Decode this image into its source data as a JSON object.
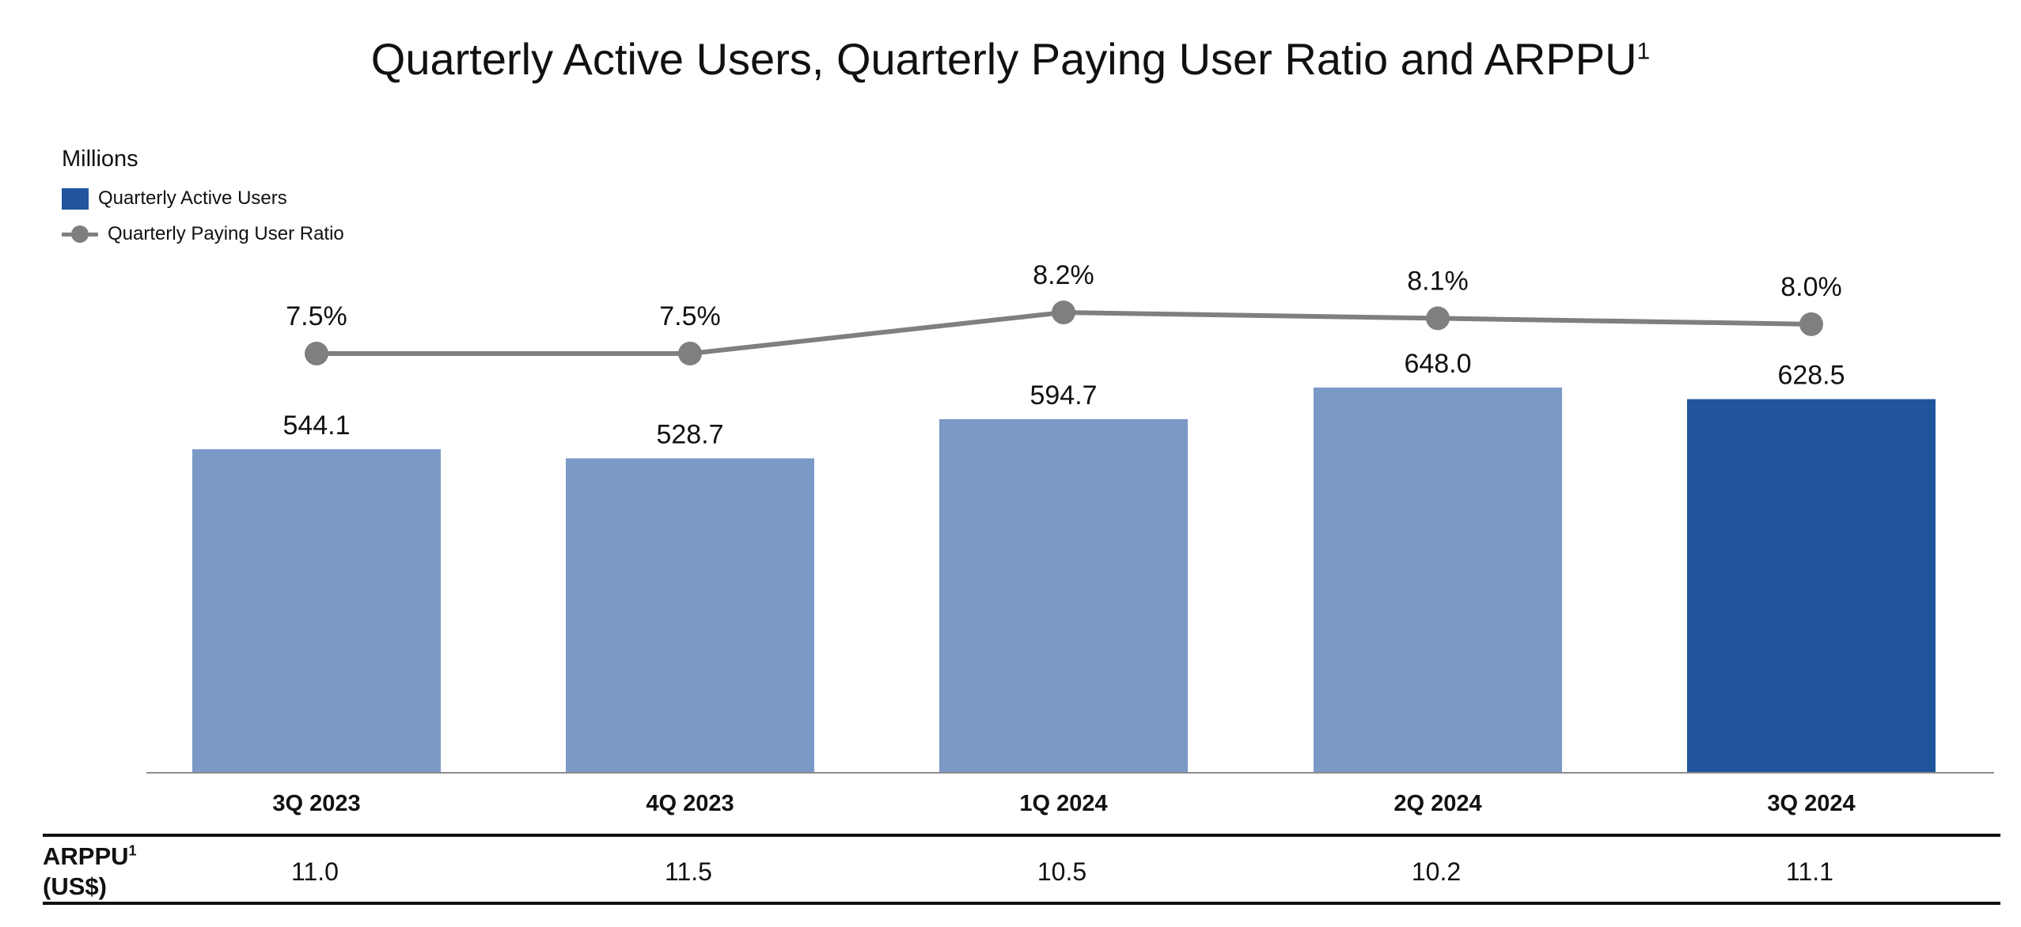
{
  "chart_data": {
    "type": "bar",
    "title": "Quarterly Active Users, Quarterly Paying User Ratio and ARPPU",
    "title_footnote": "1",
    "units_label": "Millions",
    "categories": [
      "3Q 2023",
      "4Q 2023",
      "1Q 2024",
      "2Q 2024",
      "3Q 2024"
    ],
    "series": [
      {
        "name": "Quarterly Active Users",
        "type": "bar",
        "values": [
          544.1,
          528.7,
          594.7,
          648.0,
          628.5
        ],
        "labels": [
          "544.1",
          "528.7",
          "594.7",
          "648.0",
          "628.5"
        ],
        "color": "#7b99c6",
        "highlight_color": "#20559e",
        "highlight_index": 4
      },
      {
        "name": "Quarterly Paying User Ratio",
        "type": "line",
        "values": [
          7.5,
          7.5,
          8.2,
          8.1,
          8.0
        ],
        "labels": [
          "7.5%",
          "7.5%",
          "8.2%",
          "8.1%",
          "8.0%"
        ],
        "color": "#7f7f7f"
      }
    ],
    "ylim": [
      0,
      648.0
    ],
    "grid": false,
    "legend": "top-left",
    "arppu": {
      "label": "ARPPU",
      "footnote": "1",
      "unit": "(US$)",
      "values": [
        "11.0",
        "11.5",
        "10.5",
        "10.2",
        "11.1"
      ]
    }
  }
}
